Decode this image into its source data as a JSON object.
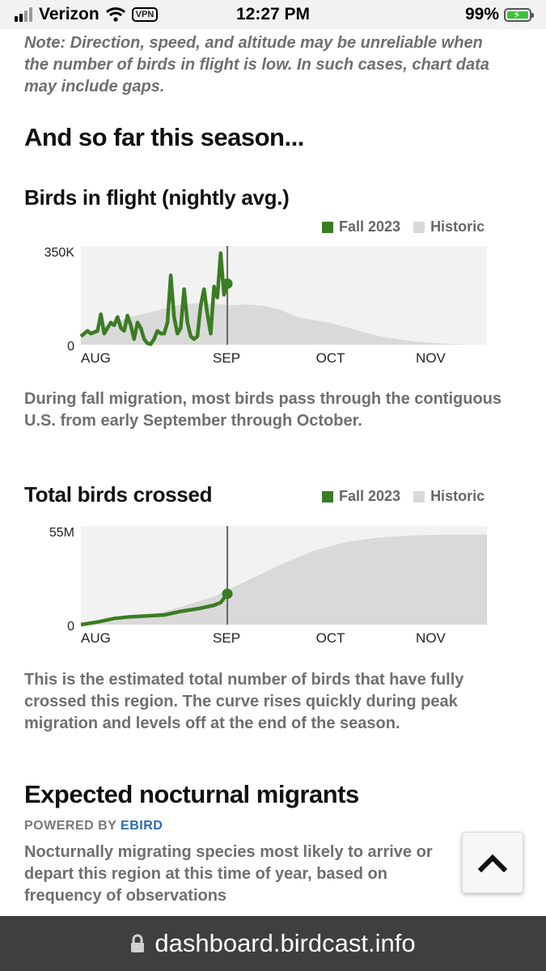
{
  "status_bar": {
    "carrier": "Verizon",
    "vpn": "VPN",
    "time": "12:27 PM",
    "battery": "99%"
  },
  "note": "Note: Direction, speed, and altitude may be unreliable when the number of birds in flight is low. In such cases, chart data may include gaps.",
  "season_heading": "And so far this season...",
  "flight_chart": {
    "title": "Birds in flight (nightly avg.)",
    "legend": {
      "current": "Fall 2023",
      "historic": "Historic"
    },
    "colors": {
      "current": "#3a7d22",
      "historic": "#d9d9d9",
      "background": "#f2f2f2"
    },
    "description": "During fall migration, most birds pass through the contiguous U.S. from early September through October."
  },
  "crossed_chart": {
    "title": "Total birds crossed",
    "legend": {
      "current": "Fall 2023",
      "historic": "Historic"
    },
    "description": "This is the estimated total number of birds that have fully crossed this region. The curve rises quickly during peak migration and levels off at the end of the season."
  },
  "migrants": {
    "heading": "Expected nocturnal migrants",
    "powered_by": "POWERED BY",
    "powered_link": "EBIRD",
    "description": "Nocturnally migrating species most likely to arrive or depart this region at this time of year, based on frequency of observations"
  },
  "url_bar": {
    "url": "dashboard.birdcast.info",
    "lock_icon": "lock-icon"
  },
  "chart_data": [
    {
      "type": "area",
      "title": "Birds in flight (nightly avg.)",
      "x_ticks": [
        "AUG",
        "SEP",
        "OCT",
        "NOV"
      ],
      "y_ticks": [
        "0",
        "350K"
      ],
      "ylim": [
        0,
        350000
      ],
      "x_domain_days": [
        0,
        122
      ],
      "current_day": 44,
      "series": [
        {
          "name": "Historic",
          "x": [
            0,
            5,
            10,
            15,
            20,
            25,
            30,
            35,
            40,
            45,
            50,
            55,
            60,
            65,
            70,
            75,
            80,
            85,
            90,
            95,
            100,
            105,
            110,
            115,
            122
          ],
          "values": [
            30000,
            60000,
            80000,
            100000,
            115000,
            130000,
            145000,
            150000,
            148000,
            142000,
            145000,
            140000,
            125000,
            100000,
            88000,
            78000,
            62000,
            45000,
            30000,
            20000,
            12000,
            7000,
            3000,
            1000,
            0
          ]
        },
        {
          "name": "Fall 2023",
          "x": [
            0,
            2,
            3,
            5,
            6,
            7,
            8,
            9,
            10,
            11,
            12,
            13,
            14,
            15,
            16,
            17,
            18,
            19,
            20,
            21,
            22,
            23,
            24,
            25,
            26,
            27,
            28,
            29,
            30,
            31,
            32,
            33,
            34,
            35,
            36,
            37,
            38,
            39,
            40,
            41,
            42,
            43,
            44
          ],
          "values": [
            30000,
            50000,
            40000,
            50000,
            110000,
            40000,
            60000,
            80000,
            70000,
            100000,
            60000,
            50000,
            105000,
            70000,
            20000,
            80000,
            60000,
            20000,
            5000,
            2000,
            20000,
            50000,
            40000,
            40000,
            80000,
            250000,
            100000,
            40000,
            60000,
            200000,
            80000,
            30000,
            20000,
            30000,
            140000,
            200000,
            110000,
            40000,
            210000,
            170000,
            330000,
            180000,
            220000
          ]
        }
      ]
    },
    {
      "type": "area",
      "title": "Total birds crossed",
      "x_ticks": [
        "AUG",
        "SEP",
        "OCT",
        "NOV"
      ],
      "y_ticks": [
        "0",
        "55M"
      ],
      "ylim": [
        0,
        55000000
      ],
      "x_domain_days": [
        0,
        122
      ],
      "current_day": 44,
      "series": [
        {
          "name": "Historic",
          "x": [
            0,
            10,
            20,
            30,
            40,
            50,
            60,
            70,
            80,
            90,
            100,
            110,
            122
          ],
          "values": [
            0,
            2000000,
            5000000,
            10000000,
            16000000,
            25000000,
            34000000,
            42000000,
            47000000,
            49500000,
            50500000,
            51000000,
            51000000
          ]
        },
        {
          "name": "Fall 2023",
          "x": [
            0,
            5,
            10,
            15,
            20,
            25,
            30,
            35,
            40,
            42,
            44
          ],
          "values": [
            0,
            1500000,
            3500000,
            4500000,
            5000000,
            5500000,
            7500000,
            9000000,
            11000000,
            12500000,
            17500000
          ]
        }
      ]
    }
  ]
}
